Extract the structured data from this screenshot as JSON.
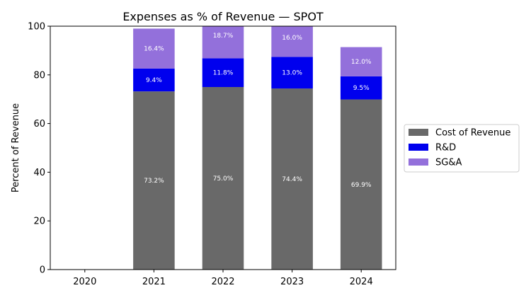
{
  "chart_data": {
    "type": "bar",
    "stacked": true,
    "title": "Expenses as % of Revenue — SPOT",
    "xlabel": "",
    "ylabel": "Percent of Revenue",
    "categories": [
      "2020",
      "2021",
      "2022",
      "2023",
      "2024"
    ],
    "ylim": [
      0,
      100
    ],
    "yticks": [
      0,
      20,
      40,
      60,
      80,
      100
    ],
    "grid": false,
    "legend_position": "right",
    "series": [
      {
        "name": "Cost of Revenue",
        "color": "#696969",
        "values": [
          null,
          73.2,
          75.0,
          74.4,
          69.9
        ],
        "labels": [
          "",
          "73.2%",
          "75.0%",
          "74.4%",
          "69.9%"
        ]
      },
      {
        "name": "R&D",
        "color": "#0000ee",
        "values": [
          null,
          9.4,
          11.8,
          13.0,
          9.5
        ],
        "labels": [
          "",
          "9.4%",
          "11.8%",
          "13.0%",
          "9.5%"
        ]
      },
      {
        "name": "SG&A",
        "color": "#9370db",
        "values": [
          null,
          16.4,
          18.7,
          16.0,
          12.0
        ],
        "labels": [
          "",
          "16.4%",
          "18.7%",
          "16.0%",
          "12.0%"
        ]
      }
    ]
  }
}
